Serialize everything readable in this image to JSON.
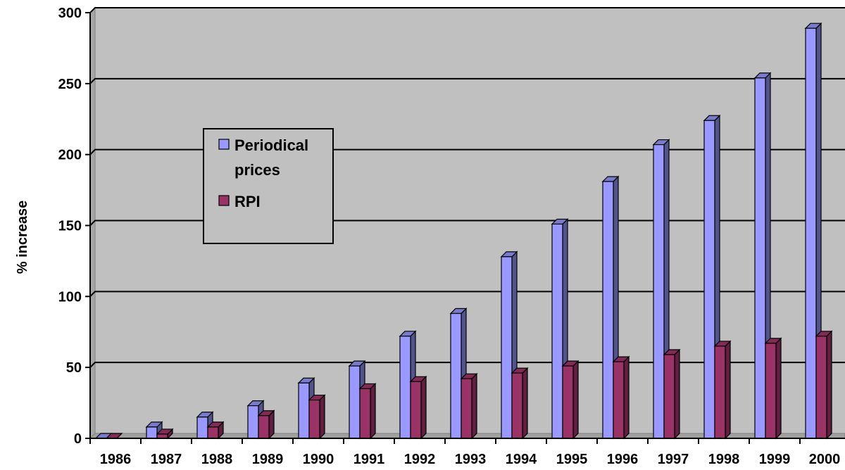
{
  "chart_data": {
    "type": "bar",
    "title": "",
    "xlabel": "",
    "ylabel": "% increase",
    "ylim": [
      0,
      300
    ],
    "yticks": [
      0,
      50,
      100,
      150,
      200,
      250,
      300
    ],
    "grid": true,
    "legend_position": "upper-left",
    "style": "3d-clustered-column",
    "categories": [
      "1986",
      "1987",
      "1988",
      "1989",
      "1990",
      "1991",
      "1992",
      "1993",
      "1994",
      "1995",
      "1996",
      "1997",
      "1998",
      "1999",
      "2000"
    ],
    "series": [
      {
        "name": "Periodical prices",
        "legend_lines": [
          "Periodical",
          "prices"
        ],
        "color": "#9999ff",
        "values": [
          0,
          8,
          15,
          23,
          39,
          51,
          72,
          88,
          128,
          151,
          181,
          207,
          224,
          254,
          289
        ]
      },
      {
        "name": "RPI",
        "legend_lines": [
          "RPI"
        ],
        "color": "#993366",
        "values": [
          0,
          3,
          8,
          16,
          27,
          35,
          40,
          42,
          46,
          51,
          54,
          59,
          65,
          67,
          72
        ]
      }
    ],
    "plot_background": "#c0c0c0"
  }
}
